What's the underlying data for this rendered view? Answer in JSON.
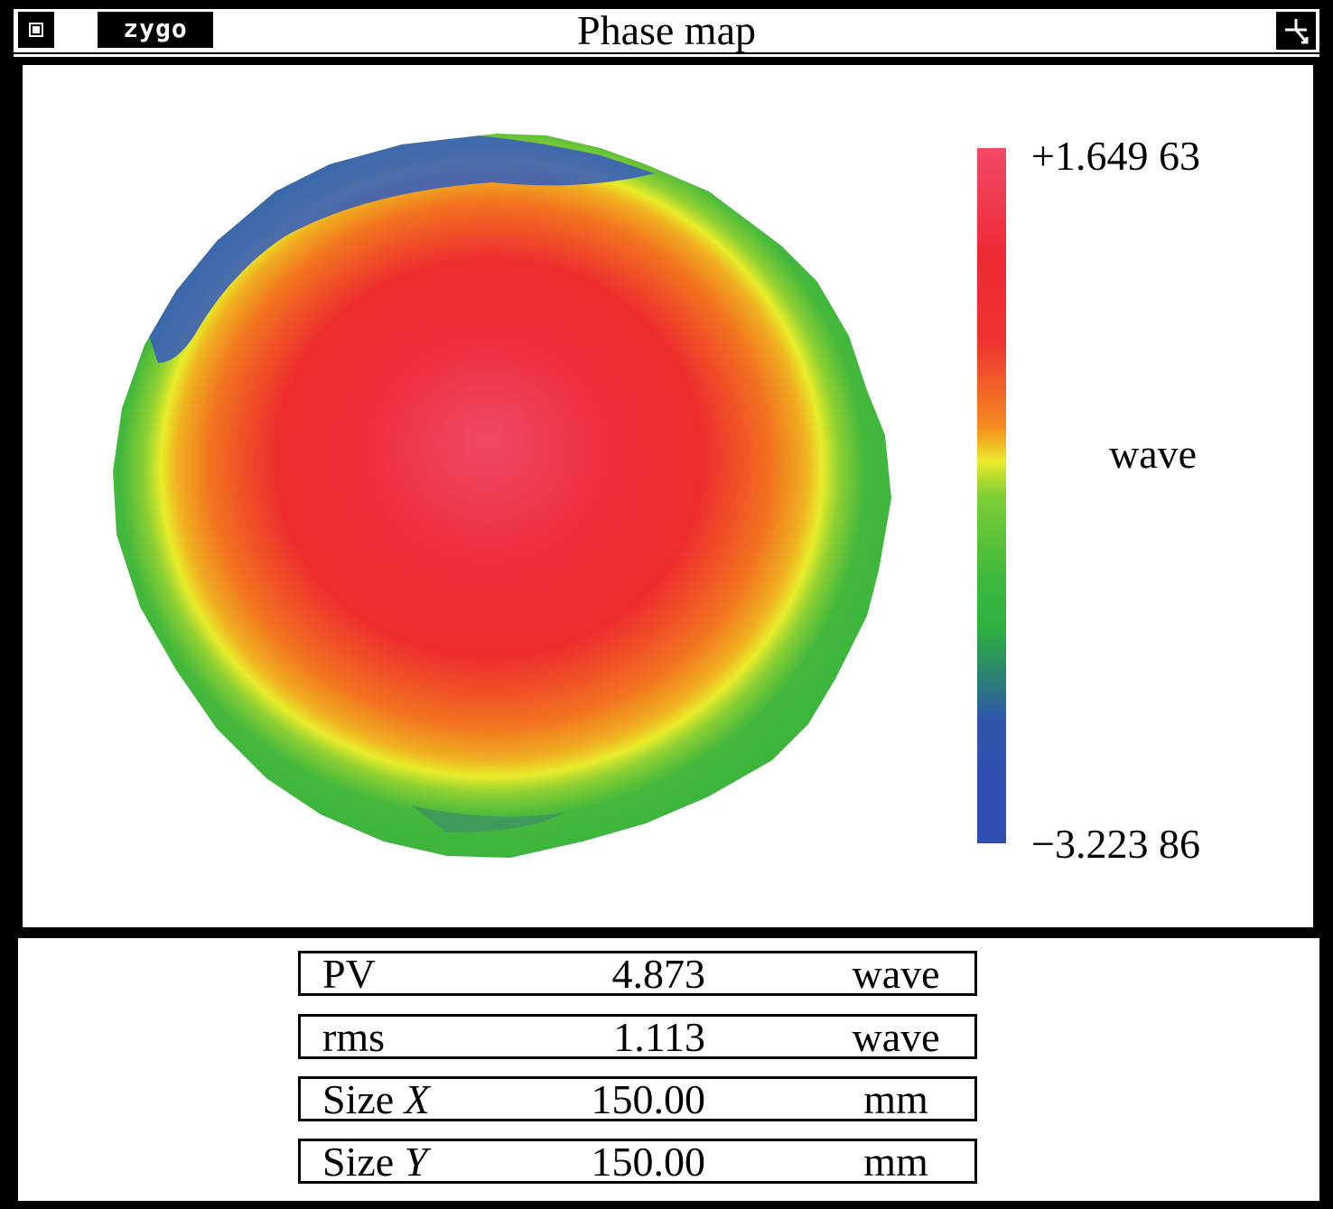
{
  "window": {
    "logo_text": "zygo",
    "title": "Phase map"
  },
  "colorbar": {
    "max_label": "+1.649 63",
    "min_label": "−3.223 86",
    "unit_label": "wave",
    "max_value": 1.64963,
    "min_value": -3.22386,
    "colors": [
      "#f24a66",
      "#ee2a35",
      "#f58a1f",
      "#eaea2a",
      "#3db83c",
      "#2f4fb0"
    ]
  },
  "stats": [
    {
      "label": "PV",
      "label_italic": "",
      "value": "4.873",
      "unit": "wave"
    },
    {
      "label": "rms",
      "label_italic": "",
      "value": "1.113",
      "unit": "wave"
    },
    {
      "label": "Size ",
      "label_italic": "X",
      "value": "150.00",
      "unit": "mm"
    },
    {
      "label": "Size ",
      "label_italic": "Y",
      "value": "150.00",
      "unit": "mm"
    }
  ]
}
